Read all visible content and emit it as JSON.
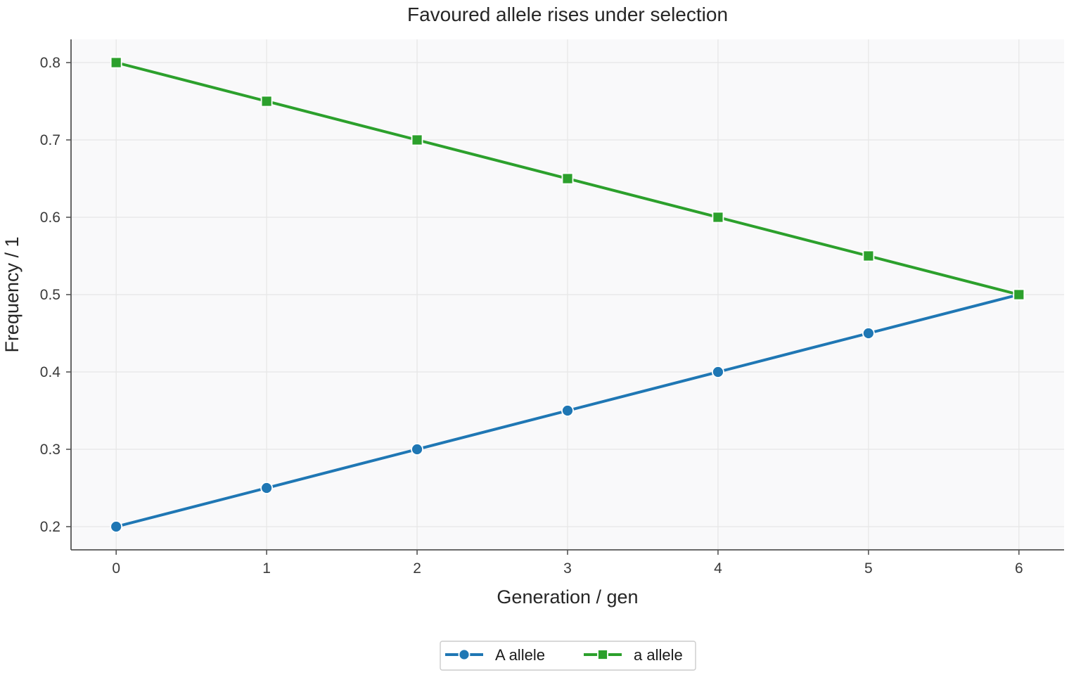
{
  "chart_data": {
    "type": "line",
    "title": "Favoured allele rises under selection",
    "xlabel": "Generation / gen",
    "ylabel": "Frequency / 1",
    "x": [
      0,
      1,
      2,
      3,
      4,
      5,
      6
    ],
    "xlim": [
      -0.3,
      6.3
    ],
    "ylim": [
      0.17,
      0.83
    ],
    "xticks": [
      0,
      1,
      2,
      3,
      4,
      5,
      6
    ],
    "yticks": [
      0.2,
      0.3,
      0.4,
      0.5,
      0.6,
      0.7,
      0.8
    ],
    "grid": true,
    "legend_position": "bottom-center",
    "series": [
      {
        "name": "A allele",
        "marker": "circle",
        "color": "#1f77b4",
        "values": [
          0.2,
          0.25,
          0.3,
          0.35,
          0.4,
          0.45,
          0.5
        ]
      },
      {
        "name": "a allele",
        "marker": "square",
        "color": "#2ca02c",
        "values": [
          0.8,
          0.75,
          0.7,
          0.65,
          0.6,
          0.55,
          0.5
        ]
      }
    ],
    "plot_background": "#f9f9fa"
  }
}
